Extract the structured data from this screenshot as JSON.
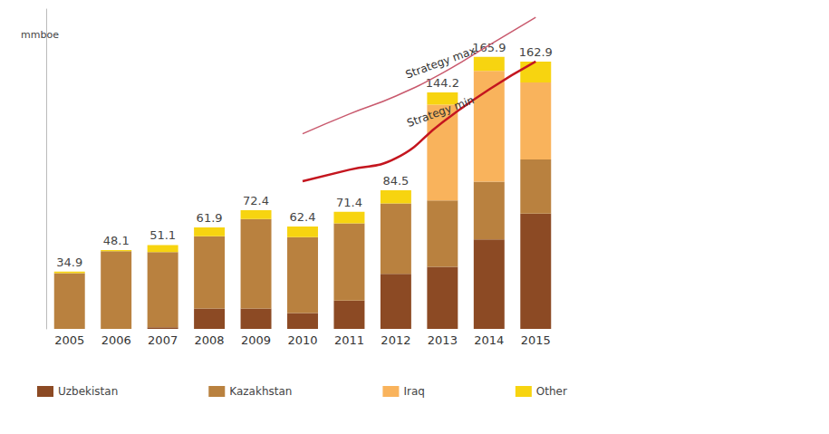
{
  "chart_data": {
    "type": "bar",
    "stacked": true,
    "ylabel": "mmboe",
    "categories": [
      "2005",
      "2006",
      "2007",
      "2008",
      "2009",
      "2010",
      "2011",
      "2012",
      "2013",
      "2014",
      "2015"
    ],
    "series": [
      {
        "name": "Uzbekistan",
        "color": "#8c4a24",
        "values": [
          0,
          0,
          1.0,
          12.4,
          12.4,
          9.7,
          17.3,
          33.5,
          37.8,
          54.6,
          70.3
        ]
      },
      {
        "name": "Kazakhstan",
        "color": "#b9813f",
        "values": [
          34.0,
          47.3,
          45.8,
          44.1,
          54.6,
          46.2,
          47.1,
          43.0,
          40.5,
          35.1,
          33.0
        ]
      },
      {
        "name": "Iraq",
        "color": "#f9b35c",
        "values": [
          0,
          0,
          0,
          0,
          0,
          0,
          0,
          0,
          58.4,
          67.6,
          47.0
        ]
      },
      {
        "name": "Other",
        "color": "#f7d410",
        "values": [
          0.9,
          0.8,
          4.3,
          5.4,
          5.4,
          6.5,
          7.0,
          8.0,
          7.5,
          8.6,
          12.6
        ]
      },
      {
        "name": "Strategy max",
        "type": "line",
        "color": "#c95a6e",
        "values": [
          null,
          null,
          null,
          null,
          null,
          119,
          131,
          142,
          156,
          173,
          190
        ]
      },
      {
        "name": "Strategy min",
        "type": "line",
        "color": "#c4161f",
        "values": [
          null,
          null,
          null,
          null,
          null,
          90,
          97,
          104,
          126,
          146,
          163
        ]
      }
    ],
    "totals": [
      34.9,
      48.1,
      51.1,
      61.9,
      72.4,
      62.4,
      71.4,
      84.5,
      144.2,
      165.9,
      162.9
    ],
    "ylim": [
      0,
      195
    ],
    "yticks": [],
    "tick_labels": "x",
    "grid": false,
    "legend": "bottom"
  }
}
